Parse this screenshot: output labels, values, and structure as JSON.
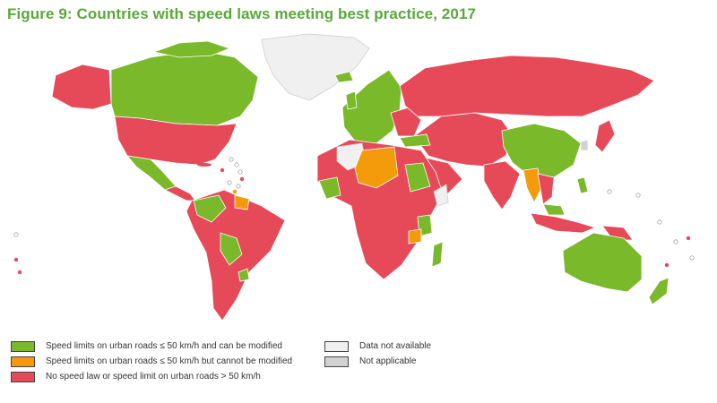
{
  "title": "Figure 9: Countries with speed laws meeting best practice, 2017",
  "colors": {
    "green": "#7ab929",
    "orange": "#f49b0c",
    "red": "#e64a58",
    "no_data": "#f0f0f0",
    "not_applicable": "#d2d2d2",
    "border": "#ffffff"
  },
  "legend": {
    "left": [
      {
        "label": "Speed limits on urban roads ≤ 50 km/h and can be modified",
        "color": "#7ab929"
      },
      {
        "label": "Speed limits on urban roads ≤ 50 km/h but cannot be modified",
        "color": "#f49b0c"
      },
      {
        "label": "No speed law or speed limit on urban roads > 50 km/h",
        "color": "#e64a58"
      }
    ],
    "right": [
      {
        "label": "Data not available",
        "color": "#f0f0f0"
      },
      {
        "label": "Not applicable",
        "color": "#d2d2d2"
      }
    ]
  }
}
